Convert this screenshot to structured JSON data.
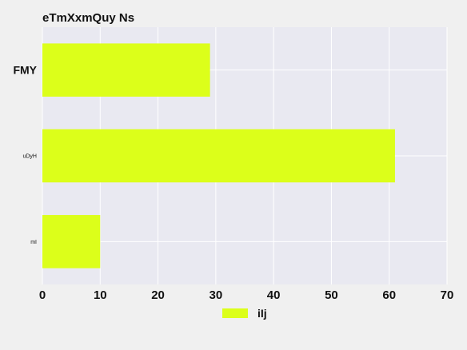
{
  "chart_data": {
    "type": "bar",
    "orientation": "horizontal",
    "title": "eTmXxmQuy Ns",
    "categories": [
      "FMY",
      "uDyH",
      "mI"
    ],
    "series": [
      {
        "name": "iIj",
        "values": [
          29,
          61,
          10
        ],
        "color": "#dcff1a"
      }
    ],
    "xlim": [
      0,
      70
    ],
    "xticks": [
      0,
      10,
      20,
      30,
      40,
      50,
      60,
      70
    ],
    "grid": true,
    "legend": "bottom-center",
    "colors": {
      "plot_bg": "#e9e9f1",
      "page_bg": "#f0f0f0",
      "grid": "#ffffff"
    }
  }
}
